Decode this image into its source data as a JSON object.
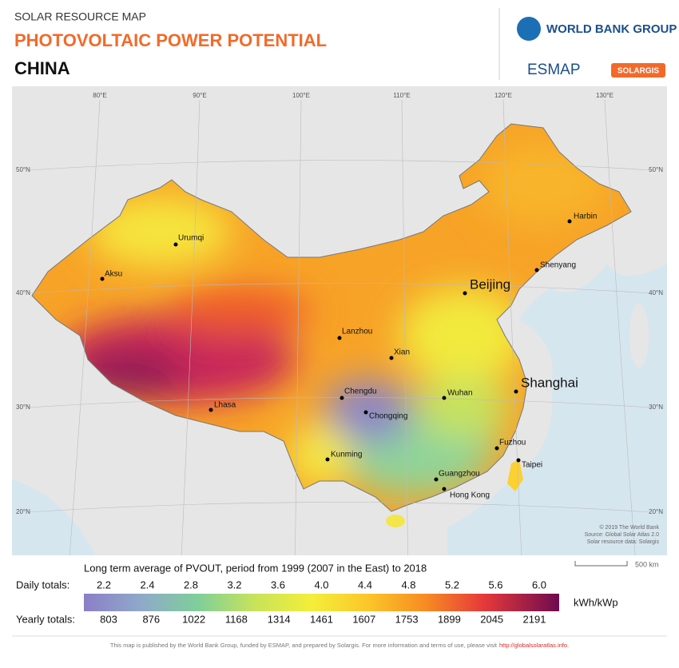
{
  "header": {
    "subtitle": "SOLAR RESOURCE MAP",
    "title": "PHOTOVOLTAIC POWER POTENTIAL",
    "country": "CHINA"
  },
  "logos": {
    "world_bank": "WORLD BANK GROUP",
    "esmap": "ESMAP",
    "solargis": "SOLARGIS"
  },
  "map": {
    "longitudes": [
      "80°E",
      "90°E",
      "100°E",
      "110°E",
      "120°E",
      "130°E"
    ],
    "latitudes": [
      "50°N",
      "40°N",
      "30°N",
      "20°N"
    ],
    "cities": [
      {
        "name": "Harbin"
      },
      {
        "name": "Urumqi"
      },
      {
        "name": "Aksu"
      },
      {
        "name": "Shenyang"
      },
      {
        "name": "Beijing"
      },
      {
        "name": "Lanzhou"
      },
      {
        "name": "Xian"
      },
      {
        "name": "Chengdu"
      },
      {
        "name": "Chongqing"
      },
      {
        "name": "Wuhan"
      },
      {
        "name": "Shanghai"
      },
      {
        "name": "Lhasa"
      },
      {
        "name": "Kunming"
      },
      {
        "name": "Fuzhou"
      },
      {
        "name": "Taipei"
      },
      {
        "name": "Guangzhou"
      },
      {
        "name": "Hong Kong"
      }
    ],
    "credits": [
      "© 2019 The World Bank",
      "Source: Global Solar Atlas 2.0",
      "Solar resource data: Solargis"
    ],
    "scale": "500 km"
  },
  "legend": {
    "caption": "Long term average of PVOUT, period from 1999 (2007 in the East) to 2018",
    "daily_label": "Daily totals:",
    "daily": [
      "2.2",
      "2.4",
      "2.8",
      "3.2",
      "3.6",
      "4.0",
      "4.4",
      "4.8",
      "5.2",
      "5.6",
      "6.0"
    ],
    "unit": "kWh/kWp",
    "yearly_label": "Yearly totals:",
    "yearly": [
      "803",
      "876",
      "1022",
      "1168",
      "1314",
      "1461",
      "1607",
      "1753",
      "1899",
      "2045",
      "2191"
    ]
  },
  "footer": {
    "text": "This map is published by the World Bank Group, funded by ESMAP, and prepared by Solargis. For more information and terms of use, please visit",
    "link": "http://globalsolaratlas.info."
  }
}
